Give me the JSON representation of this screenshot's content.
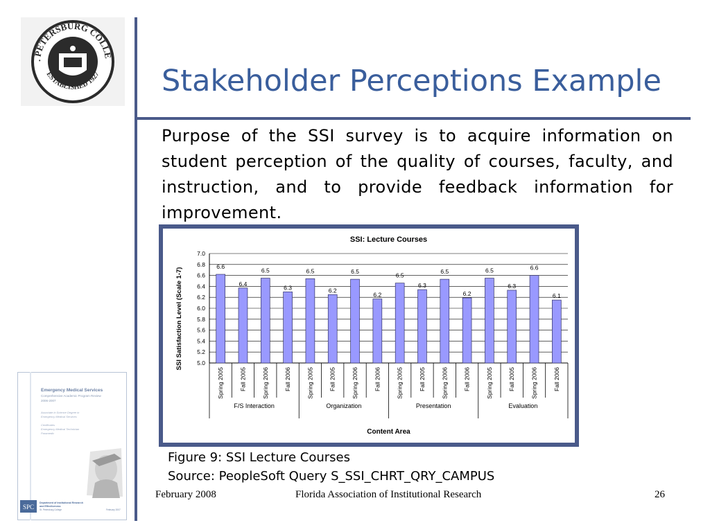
{
  "slide": {
    "title": "Stakeholder Perceptions Example",
    "body": "Purpose of the SSI survey is to acquire information on student perception of the quality of courses, faculty, and instruction, and to provide feedback information for improvement.",
    "caption_line1": "Figure 9:  SSI Lecture Courses",
    "caption_line2": "Source: PeopleSoft Query S_SSI_CHRT_QRY_CAMPUS",
    "footer_date": "February 2008",
    "footer_org": "Florida Association of Institutional Research",
    "footer_page": "26",
    "accent_color": "#3a5e9c",
    "rule_color": "#4a5a8a"
  },
  "logo": {
    "ring_text_top": "ST. PETERSBURG COLLEGE",
    "ring_text_bottom": "ESTABLISHED 1927"
  },
  "report_cover": {
    "title": "Emergency Medical Services",
    "subtitle": "Comprehensive Academic Program Review",
    "years": "2006-2007",
    "degree1": "Associate in Science Degree in",
    "degree2": "Emergency Medical Services",
    "cert1": "Certificates",
    "cert2": "Emergency Medical Technician",
    "cert3": "Paramedic",
    "dept1": "Department of Institutional Research",
    "dept2": "and Effectiveness",
    "dept3": "St. Petersburg College",
    "date": "February 2007",
    "badge": "SPC"
  },
  "chart_data": {
    "type": "bar",
    "title": "SSI: Lecture Courses",
    "ylabel": "SSI Satisfaction Level (Scale 1-7)",
    "xlabel": "Content Area",
    "ylim": [
      5.0,
      7.0
    ],
    "yticks": [
      "5.0",
      "5.2",
      "5.4",
      "5.6",
      "5.8",
      "6.0",
      "6.2",
      "6.4",
      "6.6",
      "6.8",
      "7.0"
    ],
    "categories": [
      "Spring 2005",
      "Fall 2005",
      "Spring 2006",
      "Fall 2006",
      "Spring 2005",
      "Fall 2005",
      "Spring 2006",
      "Fall 2006",
      "Spring 2005",
      "Fall 2005",
      "Spring 2006",
      "Fall 2006",
      "Spring 2005",
      "Fall 2005",
      "Spring 2006",
      "Fall 2006"
    ],
    "groups": [
      "F/S Interaction",
      "Organization",
      "Presentation",
      "Evaluation"
    ],
    "values": [
      6.62,
      6.37,
      6.55,
      6.3,
      6.54,
      6.25,
      6.53,
      6.17,
      6.46,
      6.34,
      6.53,
      6.19,
      6.55,
      6.33,
      6.6,
      6.15
    ],
    "labels": [
      "6.6",
      "6.4",
      "6.5",
      "6.3",
      "6.5",
      "6.2",
      "6.5",
      "6.2",
      "6.5",
      "6.3",
      "6.5",
      "6.2",
      "6.5",
      "6.3",
      "6.6",
      "6.1"
    ],
    "bar_color": "#9999ff",
    "grid": true,
    "legend": "none"
  }
}
